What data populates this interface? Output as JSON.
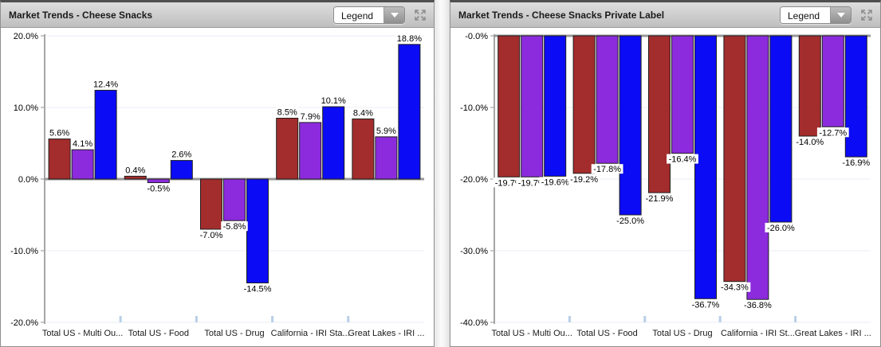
{
  "panels": [
    {
      "title": "Market Trends - Cheese Snacks",
      "legend_label": "Legend"
    },
    {
      "title": "Market Trends - Cheese Snacks Private Label",
      "legend_label": "Legend"
    }
  ],
  "icons": {
    "dropdown_arrow": "chevron-down-icon",
    "panel_resize": "expand-arrows-icon"
  },
  "colors": {
    "series_red": "#a32c2c",
    "series_purple": "#8c2bdd",
    "series_blue": "#0b0bf5",
    "bar_border": "#1f1f1f",
    "baseline": "#999999",
    "axis_line": "#a6a6a6",
    "gridline": "#e9eef5",
    "y_tick": "#c8c8c8",
    "category_tick": "#b9cfe8",
    "label_text": "#000000"
  },
  "chart_data": [
    {
      "type": "bar",
      "title": "Market Trends - Cheese Snacks",
      "categories": [
        "Total US - Multi Ou...",
        "Total US - Food",
        "Total US - Drug",
        "California - IRI Sta...",
        "Great Lakes - IRI ..."
      ],
      "series": [
        {
          "color": "#a32c2c",
          "values": [
            5.6,
            0.4,
            -7.0,
            8.5,
            8.4
          ]
        },
        {
          "color": "#8c2bdd",
          "values": [
            4.1,
            -0.5,
            -5.8,
            7.9,
            5.9
          ]
        },
        {
          "color": "#0b0bf5",
          "values": [
            12.4,
            2.6,
            -14.5,
            10.1,
            18.8
          ]
        }
      ],
      "ylim": [
        -20,
        20
      ],
      "yticks": [
        {
          "v": 20,
          "label": "20.0%"
        },
        {
          "v": 10,
          "label": "10.0%"
        },
        {
          "v": 0,
          "label": "0.0%"
        },
        {
          "v": -10,
          "label": "-10.0%"
        },
        {
          "v": -20,
          "label": "-20.0%"
        }
      ],
      "grid": true,
      "legend": "collapsed",
      "value_label_suffix": "%"
    },
    {
      "type": "bar",
      "title": "Market Trends - Cheese Snacks Private Label",
      "categories": [
        "Total US - Multi Ou...",
        "Total US - Food",
        "Total US - Drug",
        "California - IRI St...",
        "Great Lakes - IRI ..."
      ],
      "series": [
        {
          "color": "#a32c2c",
          "values": [
            -19.7,
            -19.2,
            -21.9,
            -34.3,
            -14.0
          ]
        },
        {
          "color": "#8c2bdd",
          "values": [
            -19.7,
            -17.8,
            -16.4,
            -36.8,
            -12.7
          ]
        },
        {
          "color": "#0b0bf5",
          "values": [
            -19.6,
            -25.0,
            -36.7,
            -26.0,
            -16.9
          ]
        }
      ],
      "ylim": [
        -40,
        0
      ],
      "yticks": [
        {
          "v": 0,
          "label": "-0.0%"
        },
        {
          "v": -10,
          "label": "-10.0%"
        },
        {
          "v": -20,
          "label": "-20.0%"
        },
        {
          "v": -30,
          "label": "-30.0%"
        },
        {
          "v": -40,
          "label": "-40.0%"
        }
      ],
      "grid": true,
      "legend": "collapsed",
      "value_label_suffix": "%"
    }
  ]
}
